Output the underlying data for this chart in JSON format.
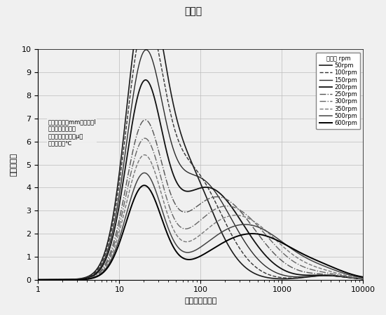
{
  "title": "図２８",
  "xlabel": "サイズ［ｎｍ］",
  "ylabel": "頻度［％］",
  "xlim": [
    1,
    10000
  ],
  "ylim": [
    0,
    10
  ],
  "yticks": [
    0,
    1,
    2,
    3,
    4,
    5,
    6,
    7,
    8,
    9,
    10
  ],
  "annotation_lines": [
    "ノーン：６０mm／０．６l",
    "撹拌時間：１５分",
    "添加成分：含有０μ）",
    "温度：２５℃"
  ],
  "legend_header": "撹拌速 rpm",
  "series": [
    {
      "label": "50rpm",
      "p1x": 20,
      "p1y": 9.85,
      "s1": 0.22,
      "p2x": 55,
      "p2y": 5.2,
      "s2": 0.38,
      "color": "#1a1a1a",
      "lw": 1.2,
      "ls": "-"
    },
    {
      "label": "100rpm",
      "p1x": 20,
      "p1y": 9.4,
      "s1": 0.22,
      "p2x": 70,
      "p2y": 4.8,
      "s2": 0.4,
      "color": "#333333",
      "lw": 1.0,
      "ls": "--"
    },
    {
      "label": "150rpm",
      "p1x": 20,
      "p1y": 8.6,
      "s1": 0.22,
      "p2x": 90,
      "p2y": 4.4,
      "s2": 0.42,
      "color": "#2a2a2a",
      "lw": 1.0,
      "ls": "-"
    },
    {
      "label": "200rpm",
      "p1x": 20,
      "p1y": 7.8,
      "s1": 0.22,
      "p2x": 120,
      "p2y": 4.0,
      "s2": 0.44,
      "color": "#111111",
      "lw": 1.3,
      "ls": "-"
    },
    {
      "label": "250rpm",
      "p1x": 20,
      "p1y": 6.4,
      "s1": 0.22,
      "p2x": 160,
      "p2y": 3.6,
      "s2": 0.46,
      "color": "#555555",
      "lw": 1.0,
      "ls": "-."
    },
    {
      "label": "300rpm",
      "p1x": 20,
      "p1y": 5.8,
      "s1": 0.22,
      "p2x": 210,
      "p2y": 3.2,
      "s2": 0.48,
      "color": "#666666",
      "lw": 1.0,
      "ls": "-."
    },
    {
      "label": "350rpm",
      "p1x": 20,
      "p1y": 5.2,
      "s1": 0.22,
      "p2x": 270,
      "p2y": 2.8,
      "s2": 0.5,
      "color": "#777777",
      "lw": 1.0,
      "ls": "--"
    },
    {
      "label": "500rpm",
      "p1x": 20,
      "p1y": 4.5,
      "s1": 0.22,
      "p2x": 350,
      "p2y": 2.4,
      "s2": 0.52,
      "color": "#444444",
      "lw": 1.1,
      "ls": "-"
    },
    {
      "label": "600rpm",
      "p1x": 20,
      "p1y": 4.0,
      "s1": 0.22,
      "p2x": 430,
      "p2y": 2.0,
      "s2": 0.54,
      "color": "#000000",
      "lw": 1.4,
      "ls": "-"
    }
  ],
  "bump_x": 3500,
  "bump_y": 0.18,
  "bump_s": 0.25,
  "background_color": "#f0f0f0",
  "grid_color": "#bbbbbb"
}
